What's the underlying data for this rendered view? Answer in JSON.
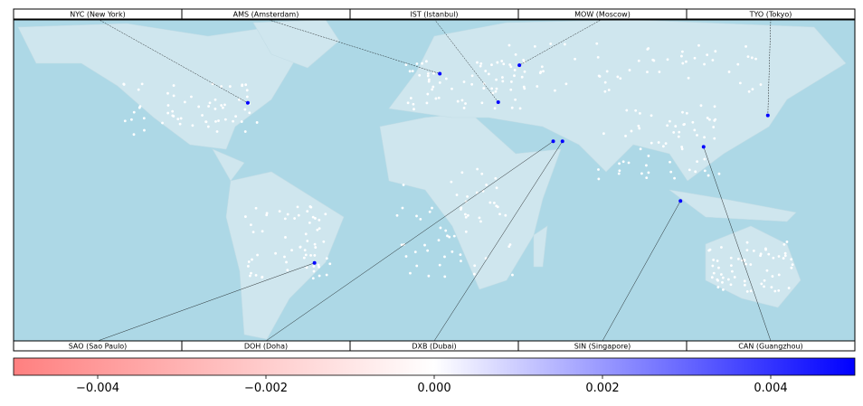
{
  "map": {
    "top_labels": [
      {
        "label": "NYC (New York)",
        "lon": -74.0,
        "lat": 40.7
      },
      {
        "label": "AMS (Amsterdam)",
        "lon": 4.9,
        "lat": 52.4
      },
      {
        "label": "IST (Istanbul)",
        "lon": 28.9,
        "lat": 41.0
      },
      {
        "label": "MOW (Moscow)",
        "lon": 37.6,
        "lat": 55.8
      },
      {
        "label": "TYO (Tokyo)",
        "lon": 139.7,
        "lat": 35.7
      }
    ],
    "bottom_labels": [
      {
        "label": "SAO (Sao Paulo)",
        "lon": -46.6,
        "lat": -23.5
      },
      {
        "label": "DOH (Doha)",
        "lon": 51.5,
        "lat": 25.3
      },
      {
        "label": "DXB (Dubai)",
        "lon": 55.3,
        "lat": 25.3
      },
      {
        "label": "SIN (Singapore)",
        "lon": 103.8,
        "lat": 1.35
      },
      {
        "label": "CAN (Guangzhou)",
        "lon": 113.3,
        "lat": 23.1
      }
    ],
    "marker_color": "#0000ff",
    "colorbar": {
      "lim": [
        -0.005,
        0.005
      ],
      "colors": [
        "#ff8080",
        "#ffffff",
        "#0000ff"
      ],
      "ticks": [
        {
          "value": -0.004,
          "label": "−0.004"
        },
        {
          "value": -0.002,
          "label": "−0.002"
        },
        {
          "value": 0,
          "label": "0.000"
        },
        0.002,
        0.004
      ]
    }
  }
}
